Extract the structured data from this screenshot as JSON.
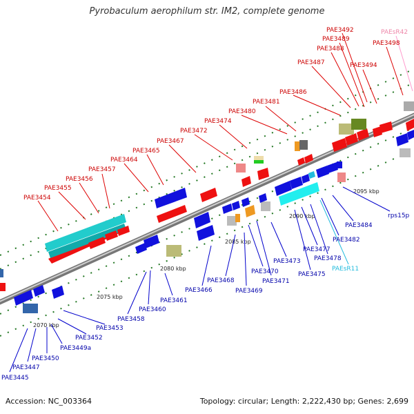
{
  "title": "Pyrobaculum aerophilum str. IM2, complete genome",
  "footer": {
    "accession": "Accession: NC_003364",
    "summary": "Topology: circular; Length: 2,222,430 bp; Genes: 2,699"
  },
  "colors": {
    "forward_gene": "#ee1111",
    "reverse_gene": "#1111dd",
    "forward_label": "#cc0000",
    "reverse_label": "#0000aa",
    "rna_forward": "#ee88aa",
    "rna_reverse": "#22bbdd",
    "backbone": "#888888",
    "tick": "#228822"
  },
  "ruler_labels": [
    "2070 kbp",
    "2075 kbp",
    "2080 kbp",
    "2085 kbp",
    "2090 kbp",
    "2095 kbp"
  ],
  "forward_labels": [
    "PAE3454",
    "PAE3455",
    "PAE3456",
    "PAE3457",
    "PAE3464",
    "PAE3465",
    "PAE3467",
    "PAE3472",
    "PAE3474",
    "PAE3480",
    "PAE3481",
    "PAE3486",
    "PAE3487",
    "PAE3488",
    "PAE3489",
    "PAE3492",
    "PAE3494",
    "PAE3498",
    "PAEsR42"
  ],
  "reverse_labels": [
    "PAE3445",
    "PAE3447",
    "PAE3450",
    "PAE3449a",
    "PAE3452",
    "PAE3453",
    "PAE3458",
    "PAE3460",
    "PAE3461",
    "PAE3466",
    "PAE3468",
    "PAE3469",
    "PAE3470",
    "PAE3471",
    "PAE3473",
    "PAE3475",
    "PAEsR11",
    "PAE3477",
    "PAE3478",
    "PAE3482",
    "PAE3484",
    "rps15p"
  ]
}
